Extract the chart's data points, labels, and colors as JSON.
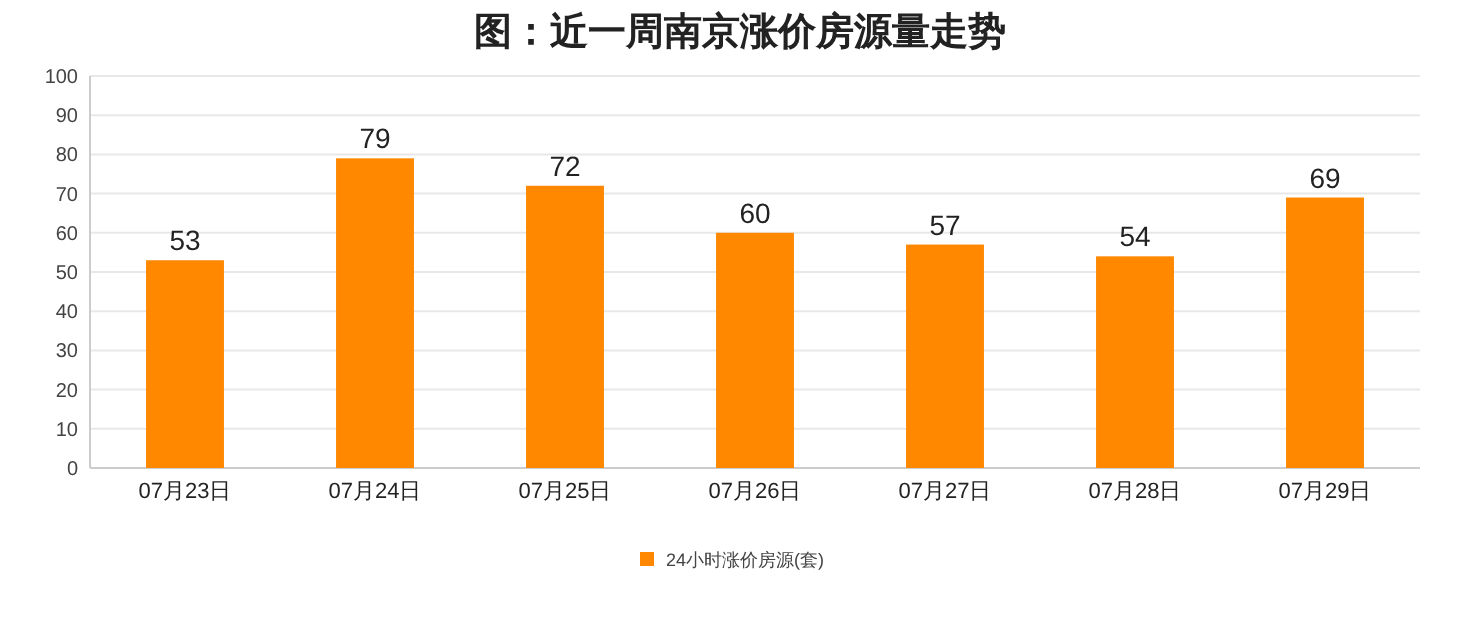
{
  "chart_data": {
    "type": "bar",
    "title": "图：近一周南京涨价房源量走势",
    "categories": [
      "07月23日",
      "07月24日",
      "07月25日",
      "07月26日",
      "07月27日",
      "07月28日",
      "07月29日"
    ],
    "series": [
      {
        "name": "24小时涨价房源(套)",
        "color": "#ff8800",
        "values": [
          53,
          79,
          72,
          60,
          57,
          54,
          69
        ]
      }
    ],
    "ylim": [
      0,
      100
    ],
    "yticks": [
      0,
      10,
      20,
      30,
      40,
      50,
      60,
      70,
      80,
      90,
      100
    ],
    "grid": "y",
    "legend": "bottom",
    "data_labels": true
  }
}
